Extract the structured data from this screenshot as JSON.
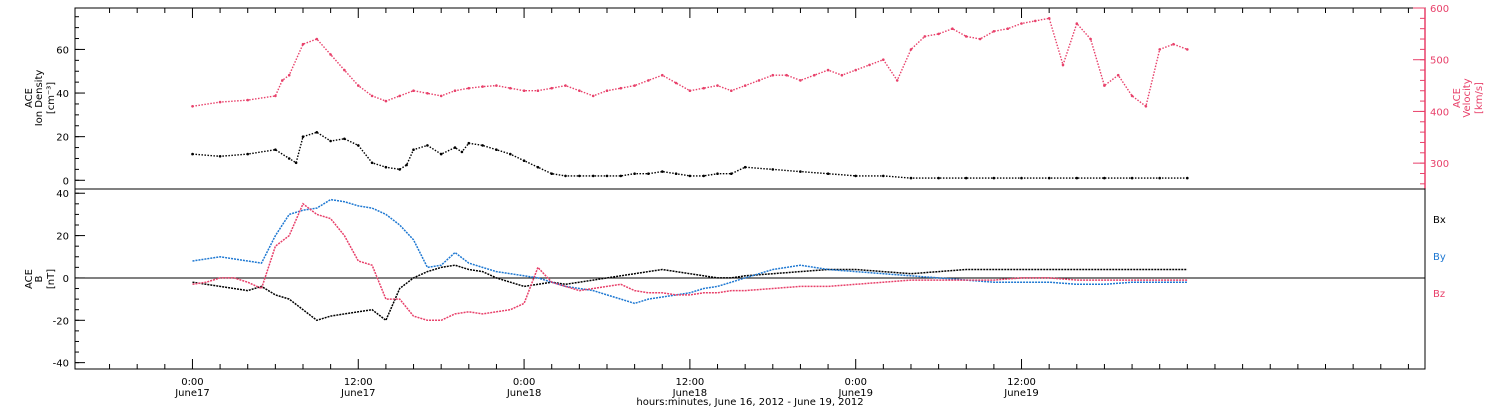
{
  "chart_data": [
    {
      "type": "scatter",
      "panel": "top",
      "left_axis": {
        "label_lines": [
          "ACE",
          "Ion Density",
          "[cm⁻³]"
        ],
        "ylim": [
          -4,
          79
        ],
        "ticks": [
          0,
          20,
          40,
          60
        ]
      },
      "right_axis": {
        "label_lines": [
          "ACE",
          "Velocity",
          "[km/s]"
        ],
        "ylim": [
          250,
          600
        ],
        "ticks": [
          300,
          400,
          500,
          600
        ],
        "color": "#e8406a"
      },
      "x_range_hours": [
        0,
        72
      ],
      "series": [
        {
          "name": "Ion Density",
          "axis": "left",
          "color": "#000000",
          "x": [
            0,
            2,
            4,
            6,
            7,
            7.5,
            8,
            9,
            10,
            11,
            12,
            13,
            14,
            15,
            15.5,
            16,
            17,
            18,
            19,
            19.5,
            20,
            21,
            22,
            23,
            24,
            25,
            26,
            27,
            28,
            29,
            30,
            31,
            32,
            33,
            34,
            35,
            36,
            37,
            38,
            39,
            40,
            42,
            44,
            46,
            48,
            50,
            52,
            54,
            56,
            58,
            60,
            62,
            64,
            66,
            68,
            70,
            72
          ],
          "y": [
            12,
            11,
            12,
            14,
            10,
            8,
            20,
            22,
            18,
            19,
            16,
            8,
            6,
            5,
            7,
            14,
            16,
            12,
            15,
            13,
            17,
            16,
            14,
            12,
            9,
            6,
            3,
            2,
            2,
            2,
            2,
            2,
            3,
            3,
            4,
            3,
            2,
            2,
            3,
            3,
            6,
            5,
            4,
            3,
            2,
            2,
            1,
            1,
            1,
            1,
            1,
            1,
            1,
            1,
            1,
            1,
            1
          ]
        },
        {
          "name": "Velocity",
          "axis": "right",
          "color": "#e8406a",
          "x": [
            0,
            2,
            4,
            6,
            6.5,
            7,
            8,
            9,
            10,
            11,
            12,
            13,
            14,
            15,
            16,
            17,
            18,
            19,
            20,
            21,
            22,
            23,
            24,
            25,
            26,
            27,
            28,
            29,
            30,
            31,
            32,
            33,
            34,
            35,
            36,
            37,
            38,
            39,
            40,
            41,
            42,
            43,
            44,
            45,
            46,
            47,
            48,
            49,
            50,
            51,
            52,
            53,
            54,
            55,
            56,
            57,
            58,
            59,
            60,
            61,
            62,
            63,
            64,
            65,
            66,
            67,
            68,
            69,
            70,
            71,
            72
          ],
          "y": [
            410,
            418,
            422,
            430,
            460,
            470,
            530,
            540,
            510,
            480,
            450,
            430,
            420,
            430,
            440,
            435,
            430,
            440,
            445,
            448,
            450,
            445,
            440,
            440,
            445,
            450,
            440,
            430,
            440,
            445,
            450,
            460,
            470,
            455,
            440,
            445,
            450,
            440,
            450,
            460,
            470,
            470,
            460,
            470,
            480,
            470,
            480,
            490,
            500,
            460,
            520,
            545,
            550,
            560,
            545,
            540,
            555,
            560,
            570,
            575,
            580,
            490,
            570,
            540,
            450,
            470,
            430,
            410,
            520,
            530,
            520
          ]
        }
      ]
    },
    {
      "type": "line",
      "panel": "bottom",
      "axis": {
        "label_lines": [
          "ACE",
          "B",
          "[nT]"
        ],
        "ylim": [
          -43,
          42
        ],
        "ticks": [
          -40,
          -20,
          0,
          20,
          40
        ]
      },
      "x_range_hours": [
        0,
        72
      ],
      "zero_line": true,
      "legend_labels": [
        "Bx",
        "By",
        "Bz"
      ],
      "legend_colors": [
        "#000000",
        "#1e78d2",
        "#e8406a"
      ],
      "series": [
        {
          "name": "Bx",
          "color": "#000000",
          "x": [
            0,
            1,
            2,
            3,
            4,
            5,
            6,
            7,
            8,
            9,
            10,
            11,
            12,
            13,
            14,
            15,
            16,
            17,
            18,
            19,
            20,
            21,
            22,
            23,
            24,
            25,
            26,
            27,
            28,
            29,
            30,
            31,
            32,
            33,
            34,
            35,
            36,
            37,
            38,
            39,
            40,
            42,
            44,
            46,
            48,
            50,
            52,
            54,
            56,
            58,
            60,
            62,
            64,
            66,
            68,
            70,
            72
          ],
          "y": [
            -2,
            -3,
            -4,
            -5,
            -6,
            -4,
            -8,
            -10,
            -15,
            -20,
            -18,
            -17,
            -16,
            -15,
            -20,
            -5,
            0,
            3,
            5,
            6,
            4,
            3,
            0,
            -2,
            -4,
            -3,
            -2,
            -3,
            -2,
            -1,
            0,
            1,
            2,
            3,
            4,
            3,
            2,
            1,
            0,
            0,
            1,
            2,
            3,
            4,
            4,
            3,
            2,
            3,
            4,
            4,
            4,
            4,
            4,
            4,
            4,
            4,
            4
          ]
        },
        {
          "name": "By",
          "color": "#1e78d2",
          "x": [
            0,
            1,
            2,
            3,
            4,
            5,
            6,
            7,
            8,
            9,
            10,
            11,
            12,
            13,
            14,
            15,
            16,
            17,
            18,
            19,
            20,
            21,
            22,
            23,
            24,
            25,
            26,
            27,
            28,
            29,
            30,
            31,
            32,
            33,
            34,
            35,
            36,
            37,
            38,
            39,
            40,
            41,
            42,
            43,
            44,
            46,
            48,
            50,
            52,
            54,
            56,
            58,
            60,
            62,
            64,
            66,
            68,
            70,
            72
          ],
          "y": [
            8,
            9,
            10,
            9,
            8,
            7,
            20,
            30,
            32,
            33,
            37,
            36,
            34,
            33,
            30,
            25,
            18,
            5,
            6,
            12,
            7,
            5,
            3,
            2,
            1,
            0,
            -2,
            -4,
            -5,
            -6,
            -8,
            -10,
            -12,
            -10,
            -9,
            -8,
            -7,
            -5,
            -4,
            -2,
            0,
            2,
            4,
            5,
            6,
            4,
            3,
            2,
            1,
            0,
            -1,
            -2,
            -2,
            -2,
            -3,
            -3,
            -2,
            -2,
            -2
          ]
        },
        {
          "name": "Bz",
          "color": "#e8406a",
          "x": [
            0,
            1,
            2,
            3,
            4,
            5,
            6,
            7,
            8,
            9,
            10,
            11,
            12,
            13,
            14,
            15,
            16,
            17,
            18,
            19,
            20,
            21,
            22,
            23,
            24,
            25,
            26,
            27,
            28,
            29,
            30,
            31,
            32,
            33,
            34,
            35,
            36,
            37,
            38,
            39,
            40,
            42,
            44,
            46,
            48,
            50,
            52,
            54,
            56,
            58,
            60,
            62,
            64,
            66,
            68,
            70,
            72
          ],
          "y": [
            -3,
            -2,
            0,
            0,
            -2,
            -5,
            15,
            20,
            35,
            30,
            28,
            20,
            8,
            6,
            -10,
            -10,
            -18,
            -20,
            -20,
            -17,
            -16,
            -17,
            -16,
            -15,
            -12,
            5,
            -2,
            -4,
            -6,
            -5,
            -4,
            -3,
            -6,
            -7,
            -7,
            -8,
            -8,
            -7,
            -7,
            -6,
            -6,
            -5,
            -4,
            -4,
            -3,
            -2,
            -1,
            -1,
            -1,
            -1,
            0,
            0,
            -1,
            -1,
            -1,
            -1,
            -1
          ]
        }
      ]
    }
  ],
  "x_axis": {
    "range": [
      -8.5,
      89.2
    ],
    "ticks": [
      {
        "h": 0,
        "time": "0:00",
        "date": "June17"
      },
      {
        "h": 12,
        "time": "12:00",
        "date": "June17"
      },
      {
        "h": 24,
        "time": "0:00",
        "date": "June18"
      },
      {
        "h": 36,
        "time": "12:00",
        "date": "June18"
      },
      {
        "h": 48,
        "time": "0:00",
        "date": "June19"
      },
      {
        "h": 60,
        "time": "12:00",
        "date": "June19"
      }
    ],
    "title": "hours:minutes, June 16, 2012 - June 19, 2012"
  }
}
